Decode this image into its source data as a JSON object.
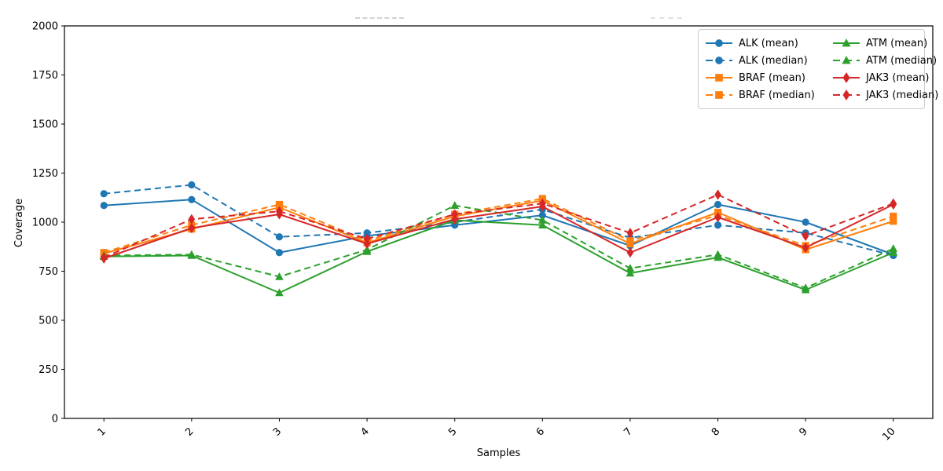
{
  "chart_data": {
    "type": "line",
    "title": "",
    "xlabel": "Samples",
    "ylabel": "Coverage",
    "x": [
      1,
      2,
      3,
      4,
      5,
      6,
      7,
      8,
      9,
      10
    ],
    "xticklabels": [
      "1",
      "2",
      "3",
      "4",
      "5",
      "6",
      "7",
      "8",
      "9",
      "10"
    ],
    "xticklabel_rotation": 45,
    "ylim": [
      0,
      2000
    ],
    "yticks": [
      0,
      250,
      500,
      750,
      1000,
      1250,
      1500,
      1750,
      2000
    ],
    "grid": false,
    "legend_position": "upper right",
    "legend_columns": 2,
    "series": [
      {
        "name": "ALK (mean)",
        "gene": "ALK",
        "stat": "mean",
        "color": "#1f77b4",
        "line": "solid",
        "marker": "circle",
        "values": [
          1085,
          1115,
          845,
          930,
          985,
          1035,
          880,
          1090,
          1000,
          835
        ]
      },
      {
        "name": "ALK (median)",
        "gene": "ALK",
        "stat": "median",
        "color": "#1f77b4",
        "line": "dashed",
        "marker": "circle",
        "values": [
          1145,
          1190,
          925,
          945,
          1000,
          1065,
          920,
          985,
          945,
          830
        ]
      },
      {
        "name": "BRAF (mean)",
        "gene": "BRAF",
        "stat": "mean",
        "color": "#ff7f0e",
        "line": "solid",
        "marker": "square",
        "values": [
          840,
          965,
          1075,
          895,
          1030,
          1110,
          890,
          1050,
          860,
          1005
        ]
      },
      {
        "name": "BRAF (median)",
        "gene": "BRAF",
        "stat": "median",
        "color": "#ff7f0e",
        "line": "dashed",
        "marker": "square",
        "values": [
          845,
          985,
          1090,
          905,
          1040,
          1120,
          905,
          1035,
          880,
          1030
        ]
      },
      {
        "name": "ATM (mean)",
        "gene": "ATM",
        "stat": "mean",
        "color": "#2ca02c",
        "line": "solid",
        "marker": "triangle",
        "values": [
          825,
          830,
          640,
          850,
          1010,
          985,
          740,
          820,
          655,
          845
        ]
      },
      {
        "name": "ATM (median)",
        "gene": "ATM",
        "stat": "median",
        "color": "#2ca02c",
        "line": "dashed",
        "marker": "triangle",
        "values": [
          830,
          835,
          722,
          860,
          1085,
          1010,
          765,
          835,
          665,
          865
        ]
      },
      {
        "name": "JAK3 (mean)",
        "gene": "JAK3",
        "stat": "mean",
        "color": "#d62728",
        "line": "solid",
        "marker": "diamond",
        "values": [
          815,
          970,
          1040,
          890,
          1015,
          1080,
          845,
          1025,
          870,
          1090
        ]
      },
      {
        "name": "JAK3 (median)",
        "gene": "JAK3",
        "stat": "median",
        "color": "#d62728",
        "line": "dashed",
        "marker": "diamond",
        "values": [
          820,
          1015,
          1055,
          915,
          1040,
          1095,
          945,
          1140,
          930,
          1095
        ]
      }
    ]
  }
}
